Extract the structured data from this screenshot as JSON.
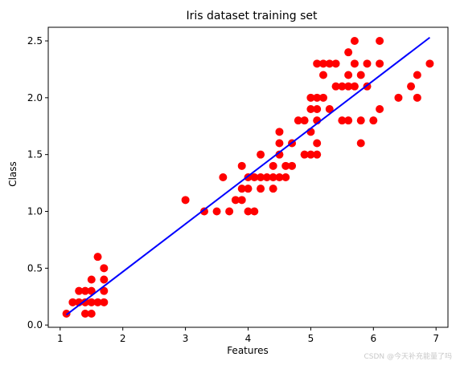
{
  "chart_data": {
    "type": "scatter",
    "title": "Iris dataset training set",
    "xlabel": "Features",
    "ylabel": "Class",
    "xlim": [
      0.81,
      7.19
    ],
    "ylim": [
      -0.02,
      2.62
    ],
    "xticks": [
      1,
      2,
      3,
      4,
      5,
      6,
      7
    ],
    "yticks": [
      0.0,
      0.5,
      1.0,
      1.5,
      2.0,
      2.5
    ],
    "grid": false,
    "series": [
      {
        "kind": "scatter",
        "color": "#ff0000",
        "points": [
          [
            1.1,
            0.1
          ],
          [
            1.3,
            0.2
          ],
          [
            1.3,
            0.3
          ],
          [
            1.4,
            0.1
          ],
          [
            1.4,
            0.2
          ],
          [
            1.4,
            0.3
          ],
          [
            1.5,
            0.1
          ],
          [
            1.5,
            0.2
          ],
          [
            1.5,
            0.3
          ],
          [
            1.5,
            0.4
          ],
          [
            1.6,
            0.2
          ],
          [
            1.6,
            0.6
          ],
          [
            1.7,
            0.2
          ],
          [
            1.7,
            0.3
          ],
          [
            1.7,
            0.4
          ],
          [
            1.7,
            0.5
          ],
          [
            1.2,
            0.2
          ],
          [
            3.0,
            1.1
          ],
          [
            3.3,
            1.0
          ],
          [
            3.5,
            1.0
          ],
          [
            3.6,
            1.3
          ],
          [
            3.7,
            1.0
          ],
          [
            3.8,
            1.1
          ],
          [
            3.9,
            1.1
          ],
          [
            3.9,
            1.2
          ],
          [
            3.9,
            1.4
          ],
          [
            4.0,
            1.0
          ],
          [
            4.0,
            1.2
          ],
          [
            4.0,
            1.3
          ],
          [
            4.1,
            1.0
          ],
          [
            4.1,
            1.3
          ],
          [
            4.2,
            1.2
          ],
          [
            4.2,
            1.3
          ],
          [
            4.2,
            1.5
          ],
          [
            4.3,
            1.3
          ],
          [
            4.4,
            1.2
          ],
          [
            4.4,
            1.3
          ],
          [
            4.4,
            1.4
          ],
          [
            4.5,
            1.3
          ],
          [
            4.5,
            1.5
          ],
          [
            4.5,
            1.6
          ],
          [
            4.5,
            1.7
          ],
          [
            4.6,
            1.3
          ],
          [
            4.6,
            1.4
          ],
          [
            4.7,
            1.4
          ],
          [
            4.7,
            1.6
          ],
          [
            4.8,
            1.8
          ],
          [
            4.9,
            1.5
          ],
          [
            4.9,
            1.8
          ],
          [
            5.0,
            1.5
          ],
          [
            5.0,
            1.7
          ],
          [
            5.0,
            1.9
          ],
          [
            5.0,
            2.0
          ],
          [
            5.1,
            1.5
          ],
          [
            5.1,
            1.6
          ],
          [
            5.1,
            1.8
          ],
          [
            5.1,
            1.9
          ],
          [
            5.1,
            2.0
          ],
          [
            5.1,
            2.3
          ],
          [
            5.2,
            2.0
          ],
          [
            5.2,
            2.3
          ],
          [
            5.2,
            2.2
          ],
          [
            5.3,
            1.9
          ],
          [
            5.3,
            2.3
          ],
          [
            5.4,
            2.1
          ],
          [
            5.4,
            2.3
          ],
          [
            5.5,
            1.8
          ],
          [
            5.5,
            2.1
          ],
          [
            5.6,
            1.8
          ],
          [
            5.6,
            2.1
          ],
          [
            5.6,
            2.2
          ],
          [
            5.6,
            2.4
          ],
          [
            5.7,
            2.1
          ],
          [
            5.7,
            2.3
          ],
          [
            5.7,
            2.5
          ],
          [
            5.8,
            1.6
          ],
          [
            5.8,
            1.8
          ],
          [
            5.8,
            2.2
          ],
          [
            5.9,
            2.1
          ],
          [
            5.9,
            2.3
          ],
          [
            6.0,
            1.8
          ],
          [
            6.1,
            1.9
          ],
          [
            6.1,
            2.3
          ],
          [
            6.1,
            2.5
          ],
          [
            6.4,
            2.0
          ],
          [
            6.6,
            2.1
          ],
          [
            6.7,
            2.0
          ],
          [
            6.7,
            2.2
          ],
          [
            6.9,
            2.3
          ]
        ]
      },
      {
        "kind": "line",
        "color": "#0000ff",
        "x": [
          1.1,
          6.9
        ],
        "y": [
          0.09,
          2.53
        ]
      }
    ]
  },
  "watermark": "CSDN @今天补充能量了吗"
}
